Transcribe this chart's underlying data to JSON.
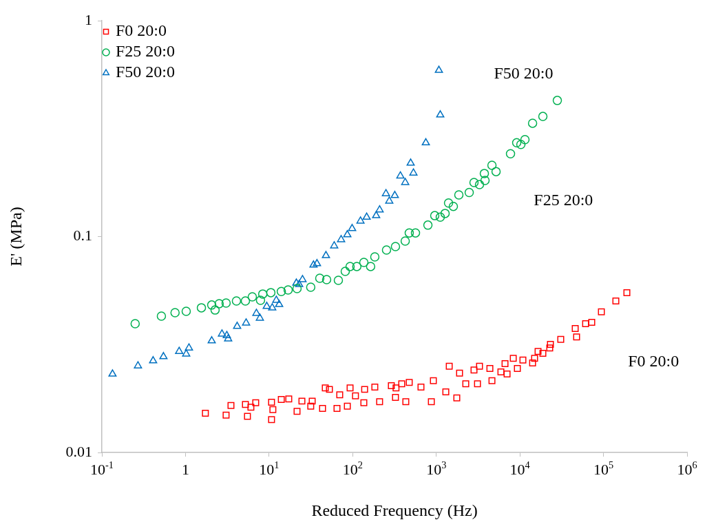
{
  "chart_data": {
    "type": "scatter",
    "xlabel": "Reduced Frequency (Hz)",
    "ylabel": "E' (MPa)",
    "log": "xy",
    "grid": false,
    "legend": "top left",
    "xlim": [
      0.1,
      1000000
    ],
    "ylim": [
      0.01,
      1
    ],
    "xticks": [
      {
        "value": 0.1,
        "label": "10$^{-1}$"
      },
      1,
      {
        "value": 10,
        "label": "10$^{1}$"
      },
      {
        "value": 100,
        "label": "10$^{2}$"
      },
      {
        "value": 1000,
        "label": "10$^{3}$"
      },
      {
        "value": 10000,
        "label": "10$^{4}$"
      },
      {
        "value": 100000,
        "label": "10$^{5}$"
      },
      {
        "value": 1000000,
        "label": "10$^{6}$"
      }
    ],
    "yticks": [
      0.01,
      0.1,
      1
    ],
    "annotations": [
      "F50 20:0",
      "F25 20:0",
      "F0 20:0"
    ],
    "series": [
      {
        "name": "F0 20:0",
        "color": "#ff0000",
        "marker": "square",
        "x": [
          1.73,
          3.06,
          3.5,
          5.51,
          5.21,
          6.92,
          6.06,
          10.7,
          10.7,
          11.1,
          14,
          17.2,
          21.6,
          24.7,
          31.5,
          32.8,
          43.6,
          47,
          52.7,
          64.9,
          70,
          86.3,
          93.1,
          108,
          136,
          139,
          184,
          210,
          290,
          325,
          386,
          330,
          475,
          432,
          656,
          873,
          923,
          1300,
          1760,
          1429,
          1898,
          2253,
          2826,
          3111,
          3289,
          4634,
          4377,
          5929,
          7031,
          6641,
          8337,
          9333,
          10870,
          14190,
          15000,
          16500,
          18840,
          22770,
          23200,
          30830,
          45920,
          47700,
          61100,
          72400,
          94400,
          140600,
          190500
        ],
        "values": [
          0.0152,
          0.0149,
          0.0165,
          0.0147,
          0.0167,
          0.017,
          0.0162,
          0.0142,
          0.0171,
          0.0158,
          0.0176,
          0.0177,
          0.0155,
          0.0173,
          0.0164,
          0.0173,
          0.016,
          0.0199,
          0.0196,
          0.016,
          0.0185,
          0.0164,
          0.0199,
          0.0183,
          0.017,
          0.0196,
          0.0201,
          0.0172,
          0.0204,
          0.018,
          0.0208,
          0.0199,
          0.0211,
          0.0172,
          0.0201,
          0.0172,
          0.0215,
          0.0191,
          0.0179,
          0.0251,
          0.0233,
          0.0208,
          0.0241,
          0.0208,
          0.0251,
          0.0215,
          0.0245,
          0.0236,
          0.0231,
          0.0258,
          0.0273,
          0.0245,
          0.0268,
          0.026,
          0.0273,
          0.0294,
          0.0288,
          0.0305,
          0.0317,
          0.0334,
          0.0375,
          0.0343,
          0.0395,
          0.0401,
          0.0448,
          0.0503,
          0.055
        ]
      },
      {
        "name": "F25 20:0",
        "color": "#00b050",
        "marker": "circle",
        "x": [
          0.25,
          0.515,
          0.75,
          1.02,
          1.55,
          2.06,
          2.26,
          2.53,
          3.06,
          4.07,
          5.21,
          6.3,
          7.9,
          8.4,
          10.5,
          14,
          16.9,
          21.6,
          31.5,
          40.4,
          48.8,
          67.4,
          81.5,
          93.1,
          112,
          136,
          164,
          184,
          254,
          325,
          425,
          475,
          564,
          794,
          959,
          1116,
          1275,
          1402,
          1600,
          1862,
          2477,
          2826,
          3289,
          3828,
          3758,
          4634,
          5190,
          7727,
          9166,
          10280,
          11500,
          14190,
          18840,
          28050
        ],
        "values": [
          0.0395,
          0.0428,
          0.0444,
          0.0451,
          0.0468,
          0.0482,
          0.0457,
          0.0489,
          0.0492,
          0.0503,
          0.0503,
          0.0526,
          0.0507,
          0.0542,
          0.055,
          0.0557,
          0.0566,
          0.0574,
          0.0583,
          0.0641,
          0.0632,
          0.0627,
          0.069,
          0.0727,
          0.0727,
          0.0759,
          0.0727,
          0.0805,
          0.0867,
          0.0899,
          0.0953,
          0.104,
          0.104,
          0.113,
          0.125,
          0.123,
          0.128,
          0.143,
          0.138,
          0.156,
          0.16,
          0.178,
          0.174,
          0.182,
          0.196,
          0.214,
          0.2,
          0.242,
          0.272,
          0.267,
          0.281,
          0.335,
          0.36,
          0.427
        ]
      },
      {
        "name": "F50 20:0",
        "color": "#0070c0",
        "marker": "triangle",
        "x": [
          0.134,
          0.27,
          0.41,
          0.545,
          0.84,
          1.02,
          1.1,
          2.06,
          2.73,
          3.12,
          3.24,
          4.15,
          5.31,
          7.05,
          7.76,
          9.38,
          10.9,
          12.2,
          13.2,
          21.2,
          22.9,
          25.1,
          34,
          37.4,
          47.9,
          60.1,
          72.7,
          86.3,
          98.5,
          124,
          147,
          191,
          210,
          250,
          274,
          319,
          372,
          425,
          494,
          533,
          750,
          1075,
          1116
        ],
        "values": [
          0.0231,
          0.0252,
          0.0266,
          0.0278,
          0.0294,
          0.0286,
          0.0305,
          0.0329,
          0.0354,
          0.0348,
          0.0336,
          0.0384,
          0.0398,
          0.0441,
          0.0419,
          0.0475,
          0.0468,
          0.0507,
          0.0485,
          0.0609,
          0.06,
          0.0632,
          0.0738,
          0.0749,
          0.0817,
          0.0906,
          0.0968,
          0.102,
          0.109,
          0.118,
          0.123,
          0.125,
          0.133,
          0.158,
          0.146,
          0.155,
          0.191,
          0.178,
          0.219,
          0.197,
          0.272,
          0.589,
          0.366
        ]
      }
    ]
  }
}
